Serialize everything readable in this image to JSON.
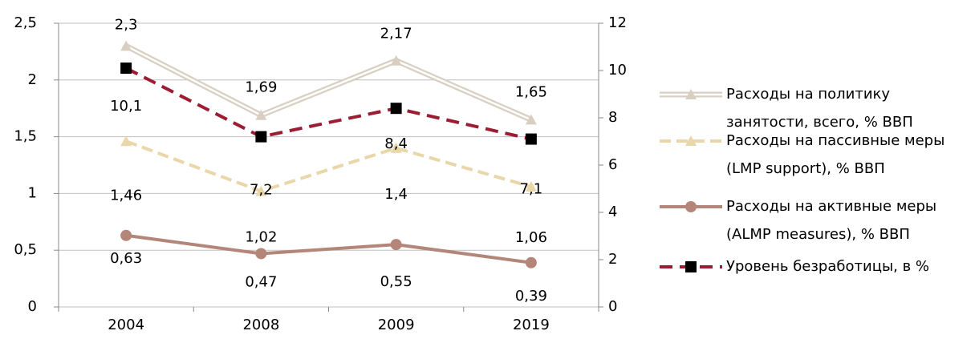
{
  "chart_data": {
    "type": "line",
    "categories": [
      "2004",
      "2008",
      "2009",
      "2019"
    ],
    "ylim": [
      0,
      2.5
    ],
    "yticks": [
      0,
      {
        "value": 0.5,
        "label": "0,5"
      },
      1,
      {
        "value": 1.5,
        "label": "1,5"
      },
      2,
      {
        "value": 2.5,
        "label": "2,5"
      }
    ],
    "y2lim": [
      0,
      12
    ],
    "y2ticks": [
      0,
      2,
      4,
      6,
      8,
      10,
      12
    ],
    "grid": true,
    "legend": "right",
    "series": [
      {
        "name": "Расходы на политику занятости, всего, % ВВП",
        "color": "#d8cfc2",
        "marker": "triangle",
        "values": [
          2.3,
          1.69,
          2.17,
          1.65
        ],
        "value_labels": [
          "2,3",
          "1,69",
          "2,17",
          "1,65"
        ]
      },
      {
        "name": "Расходы на пассивные меры (LMP support), % ВВП",
        "color": "#e9d7a9",
        "marker": "triangle",
        "values": [
          1.46,
          1.02,
          1.4,
          1.06
        ],
        "value_labels": [
          "1,46",
          "1,02",
          "1,4",
          "1,06"
        ]
      },
      {
        "name": "Расходы на активные меры (ALMP measures), % ВВП",
        "color": "#b38679",
        "marker": "circle",
        "values": [
          0.63,
          0.47,
          0.55,
          0.39
        ],
        "value_labels": [
          "0,63",
          "0,47",
          "0,55",
          "0,39"
        ]
      },
      {
        "name": "Уровень безработицы, в %",
        "color": "#9c1c31",
        "marker": "square",
        "axis": "y2",
        "values": [
          10.1,
          7.2,
          8.4,
          7.1
        ],
        "value_labels": [
          "10,1",
          "7,2",
          "8,4",
          "7,1"
        ]
      }
    ]
  }
}
